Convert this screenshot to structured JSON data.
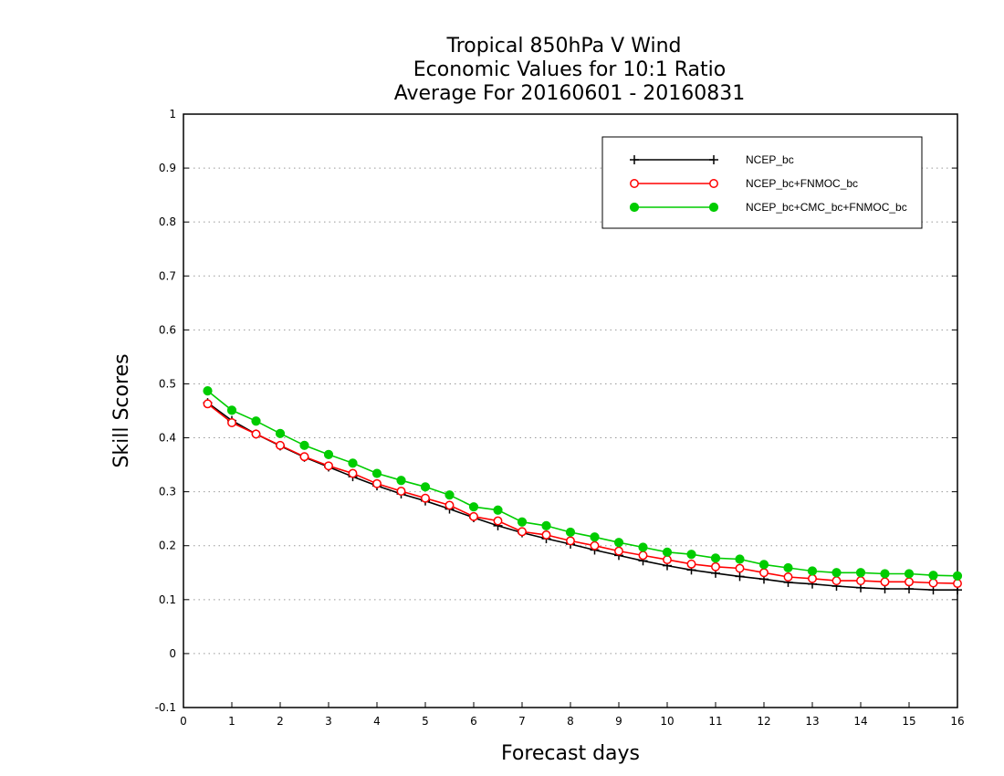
{
  "chart_data": {
    "type": "line",
    "title_lines": [
      "Tropical 850hPa V Wind",
      "Economic Values for 10:1 Ratio",
      "Average For 20160601 - 20160831"
    ],
    "xlabel": "Forecast days",
    "ylabel": "Skill Scores",
    "xlim": [
      0,
      16
    ],
    "ylim": [
      -0.1,
      1
    ],
    "x_ticks": [
      "0",
      "1",
      "2",
      "3",
      "4",
      "5",
      "6",
      "7",
      "8",
      "9",
      "10",
      "11",
      "12",
      "13",
      "14",
      "15",
      "16"
    ],
    "y_ticks": [
      "-0.1",
      "0",
      "0.1",
      "0.2",
      "0.3",
      "0.4",
      "0.5",
      "0.6",
      "0.7",
      "0.8",
      "0.9",
      "1"
    ],
    "grid": "horizontal dotted",
    "legend_position": "top-right",
    "x": [
      0.5,
      1,
      1.5,
      2,
      2.5,
      3,
      3.5,
      4,
      4.5,
      5,
      5.5,
      6,
      6.5,
      7,
      7.5,
      8,
      8.5,
      9,
      9.5,
      10,
      10.5,
      11,
      11.5,
      12,
      12.5,
      13,
      13.5,
      14,
      14.5,
      15,
      15.5,
      16
    ],
    "series": [
      {
        "name": "NCEP_bc",
        "color": "#000000",
        "marker": "plus",
        "values": [
          0.465,
          0.432,
          0.407,
          0.385,
          0.364,
          0.346,
          0.328,
          0.311,
          0.296,
          0.283,
          0.268,
          0.252,
          0.237,
          0.224,
          0.213,
          0.203,
          0.192,
          0.182,
          0.172,
          0.163,
          0.155,
          0.149,
          0.143,
          0.138,
          0.132,
          0.129,
          0.125,
          0.122,
          0.12,
          0.12,
          0.118,
          0.118
        ]
      },
      {
        "name": "NCEP_bc+FNMOC_bc",
        "color": "#ff0000",
        "marker": "open-circle",
        "values": [
          0.463,
          0.428,
          0.407,
          0.386,
          0.365,
          0.348,
          0.334,
          0.315,
          0.301,
          0.288,
          0.275,
          0.254,
          0.246,
          0.226,
          0.22,
          0.209,
          0.2,
          0.19,
          0.182,
          0.174,
          0.166,
          0.161,
          0.158,
          0.15,
          0.142,
          0.139,
          0.135,
          0.135,
          0.133,
          0.133,
          0.131,
          0.13
        ]
      },
      {
        "name": "NCEP_bc+CMC_bc+FNMOC_bc",
        "color": "#00cc00",
        "marker": "filled-circle",
        "values": [
          0.487,
          0.451,
          0.431,
          0.408,
          0.386,
          0.369,
          0.353,
          0.334,
          0.321,
          0.309,
          0.294,
          0.272,
          0.266,
          0.244,
          0.237,
          0.225,
          0.216,
          0.206,
          0.197,
          0.188,
          0.184,
          0.177,
          0.175,
          0.165,
          0.159,
          0.153,
          0.15,
          0.15,
          0.148,
          0.148,
          0.145,
          0.144
        ]
      }
    ]
  }
}
